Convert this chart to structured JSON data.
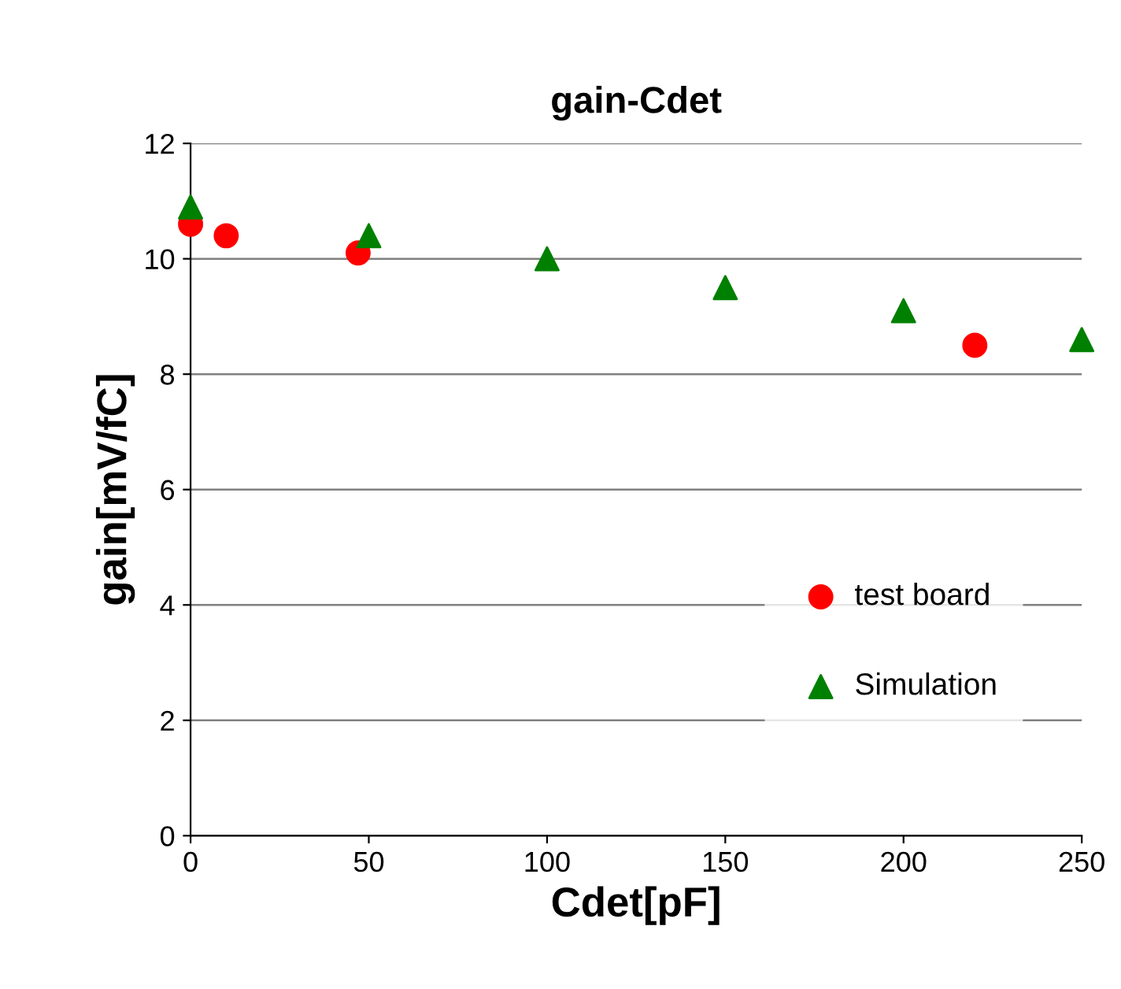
{
  "chart_data": {
    "type": "scatter",
    "title": "gain-Cdet",
    "xlabel": "Cdet[pF]",
    "ylabel": "gain[mV/fC]",
    "xlim": [
      0,
      250
    ],
    "xticks": [
      0,
      50,
      100,
      150,
      200,
      250
    ],
    "ylim": [
      0,
      12
    ],
    "yticks": [
      0,
      2,
      4,
      6,
      8,
      10,
      12
    ],
    "grid": "y",
    "legend": "center right",
    "series": [
      {
        "name": "test board",
        "color": "#ff0000",
        "marker": "circle",
        "x": [
          0,
          10,
          47,
          220
        ],
        "values": [
          10.6,
          10.4,
          10.1,
          8.5
        ]
      },
      {
        "name": "Simulation",
        "color": "#008000",
        "marker": "triangle",
        "x": [
          0,
          50,
          100,
          150,
          200,
          250
        ],
        "values": [
          10.9,
          10.4,
          10.0,
          9.5,
          9.1,
          8.6
        ]
      }
    ]
  }
}
